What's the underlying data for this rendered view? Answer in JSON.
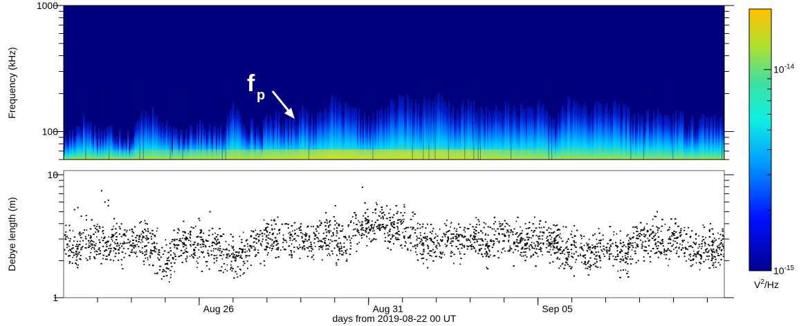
{
  "chart_data": [
    {
      "type": "heatmap",
      "panel": "spectrogram",
      "ylabel": "Frequency (kHz)",
      "yscale": "log",
      "ylim": [
        60,
        1000
      ],
      "yticks": [
        {
          "value": 1000,
          "label": "1000"
        },
        {
          "value": 100,
          "label": "100"
        }
      ],
      "xlim_days": [
        0,
        19.5
      ],
      "colormap": "jet-like",
      "colorbar": {
        "label_pre": "V",
        "label_sup": "2",
        "label_post": "/Hz",
        "scale": "log",
        "range": [
          1e-15,
          2e-14
        ],
        "ticks": [
          {
            "value": 1e-14,
            "base": "10",
            "exp": "-14"
          },
          {
            "value": 1e-15,
            "base": "10",
            "exp": "-15"
          }
        ]
      },
      "annotation": {
        "text_main": "f",
        "text_sub": "p",
        "arrow": true
      },
      "envelope_kHz": [
        {
          "day": 0.0,
          "f": 82
        },
        {
          "day": 0.6,
          "f": 125
        },
        {
          "day": 1.0,
          "f": 96
        },
        {
          "day": 1.4,
          "f": 105
        },
        {
          "day": 2.0,
          "f": 88
        },
        {
          "day": 2.4,
          "f": 150
        },
        {
          "day": 2.8,
          "f": 120
        },
        {
          "day": 3.2,
          "f": 92
        },
        {
          "day": 3.8,
          "f": 110
        },
        {
          "day": 4.2,
          "f": 102
        },
        {
          "day": 4.6,
          "f": 95
        },
        {
          "day": 5.0,
          "f": 150
        },
        {
          "day": 5.3,
          "f": 120
        },
        {
          "day": 5.8,
          "f": 100
        },
        {
          "day": 6.1,
          "f": 130
        },
        {
          "day": 6.6,
          "f": 118
        },
        {
          "day": 7.0,
          "f": 140
        },
        {
          "day": 7.4,
          "f": 122
        },
        {
          "day": 7.8,
          "f": 170
        },
        {
          "day": 8.2,
          "f": 150
        },
        {
          "day": 8.6,
          "f": 135
        },
        {
          "day": 9.0,
          "f": 115
        },
        {
          "day": 9.5,
          "f": 150
        },
        {
          "day": 10.0,
          "f": 175
        },
        {
          "day": 10.5,
          "f": 160
        },
        {
          "day": 11.0,
          "f": 180
        },
        {
          "day": 11.5,
          "f": 140
        },
        {
          "day": 12.0,
          "f": 160
        },
        {
          "day": 12.5,
          "f": 135
        },
        {
          "day": 13.0,
          "f": 150
        },
        {
          "day": 13.5,
          "f": 145
        },
        {
          "day": 14.0,
          "f": 150
        },
        {
          "day": 14.5,
          "f": 118
        },
        {
          "day": 14.8,
          "f": 165
        },
        {
          "day": 15.2,
          "f": 160
        },
        {
          "day": 15.6,
          "f": 150
        },
        {
          "day": 16.0,
          "f": 160
        },
        {
          "day": 16.5,
          "f": 145
        },
        {
          "day": 17.0,
          "f": 120
        },
        {
          "day": 17.5,
          "f": 135
        },
        {
          "day": 18.0,
          "f": 130
        },
        {
          "day": 18.5,
          "f": 120
        },
        {
          "day": 19.0,
          "f": 125
        },
        {
          "day": 19.5,
          "f": 112
        }
      ]
    },
    {
      "type": "scatter",
      "panel": "debye",
      "ylabel": "Debye length (m)",
      "yscale": "log",
      "ylim": [
        1,
        10
      ],
      "yticks": [
        {
          "value": 10,
          "label": "10"
        },
        {
          "value": 1,
          "label": "1"
        }
      ],
      "xlim_days": [
        0,
        19.5
      ],
      "xlabel": "days from 2019-08-22 00 UT",
      "xticks": [
        {
          "day": 4,
          "label": "Aug 26"
        },
        {
          "day": 9,
          "label": "Aug 31"
        },
        {
          "day": 14,
          "label": "Sep 05"
        }
      ],
      "x_minor_tick_days": [
        1,
        2,
        3,
        4,
        5,
        6,
        7,
        8,
        9,
        10,
        11,
        12,
        13,
        14,
        15,
        16,
        17,
        18,
        19
      ],
      "series": [
        {
          "marker_color": "#000000",
          "median_m": [
            {
              "day": 0.0,
              "y": 2.7
            },
            {
              "day": 0.4,
              "y": 2.5
            },
            {
              "day": 0.8,
              "y": 2.9
            },
            {
              "day": 1.2,
              "y": 2.7
            },
            {
              "day": 1.6,
              "y": 2.8
            },
            {
              "day": 2.0,
              "y": 2.6
            },
            {
              "day": 2.3,
              "y": 2.9
            },
            {
              "day": 2.6,
              "y": 2.6
            },
            {
              "day": 2.9,
              "y": 2.1
            },
            {
              "day": 3.1,
              "y": 1.9
            },
            {
              "day": 3.3,
              "y": 2.6
            },
            {
              "day": 3.6,
              "y": 2.6
            },
            {
              "day": 4.0,
              "y": 2.7
            },
            {
              "day": 4.3,
              "y": 2.5
            },
            {
              "day": 4.6,
              "y": 2.5
            },
            {
              "day": 4.9,
              "y": 2.2
            },
            {
              "day": 5.1,
              "y": 2.0
            },
            {
              "day": 5.4,
              "y": 2.5
            },
            {
              "day": 5.8,
              "y": 3.0
            },
            {
              "day": 6.2,
              "y": 2.9
            },
            {
              "day": 6.6,
              "y": 2.9
            },
            {
              "day": 7.0,
              "y": 2.9
            },
            {
              "day": 7.4,
              "y": 3.0
            },
            {
              "day": 7.8,
              "y": 3.2
            },
            {
              "day": 8.0,
              "y": 3.0
            },
            {
              "day": 8.3,
              "y": 2.6
            },
            {
              "day": 8.6,
              "y": 3.5
            },
            {
              "day": 9.0,
              "y": 3.8
            },
            {
              "day": 9.3,
              "y": 4.0
            },
            {
              "day": 9.7,
              "y": 3.7
            },
            {
              "day": 10.0,
              "y": 3.6
            },
            {
              "day": 10.3,
              "y": 3.3
            },
            {
              "day": 10.6,
              "y": 2.8
            },
            {
              "day": 10.9,
              "y": 2.7
            },
            {
              "day": 11.1,
              "y": 2.4
            },
            {
              "day": 11.3,
              "y": 3.0
            },
            {
              "day": 11.6,
              "y": 2.9
            },
            {
              "day": 11.9,
              "y": 2.8
            },
            {
              "day": 12.2,
              "y": 3.0
            },
            {
              "day": 12.5,
              "y": 2.7
            },
            {
              "day": 12.8,
              "y": 3.3
            },
            {
              "day": 13.0,
              "y": 3.0
            },
            {
              "day": 13.4,
              "y": 2.9
            },
            {
              "day": 13.8,
              "y": 2.9
            },
            {
              "day": 14.2,
              "y": 2.9
            },
            {
              "day": 14.5,
              "y": 3.0
            },
            {
              "day": 14.8,
              "y": 2.4
            },
            {
              "day": 15.1,
              "y": 2.5
            },
            {
              "day": 15.4,
              "y": 2.3
            },
            {
              "day": 15.7,
              "y": 2.4
            },
            {
              "day": 16.0,
              "y": 2.5
            },
            {
              "day": 16.3,
              "y": 2.4
            },
            {
              "day": 16.6,
              "y": 2.2
            },
            {
              "day": 16.9,
              "y": 2.9
            },
            {
              "day": 17.2,
              "y": 2.9
            },
            {
              "day": 17.5,
              "y": 2.9
            },
            {
              "day": 17.9,
              "y": 2.8
            },
            {
              "day": 18.2,
              "y": 2.9
            },
            {
              "day": 18.5,
              "y": 2.5
            },
            {
              "day": 18.8,
              "y": 2.4
            },
            {
              "day": 19.1,
              "y": 2.6
            },
            {
              "day": 19.5,
              "y": 2.5
            }
          ],
          "outliers_m": [
            {
              "day": 0.3,
              "y": 5.2
            },
            {
              "day": 0.4,
              "y": 5.4
            },
            {
              "day": 0.5,
              "y": 4.6
            },
            {
              "day": 1.1,
              "y": 7.4
            },
            {
              "day": 1.2,
              "y": 6.0
            },
            {
              "day": 1.3,
              "y": 5.6
            },
            {
              "day": 1.3,
              "y": 6.2
            },
            {
              "day": 4.3,
              "y": 5.0
            },
            {
              "day": 8.0,
              "y": 5.6
            },
            {
              "day": 8.8,
              "y": 7.9
            },
            {
              "day": 17.5,
              "y": 5.0
            }
          ]
        }
      ]
    }
  ]
}
